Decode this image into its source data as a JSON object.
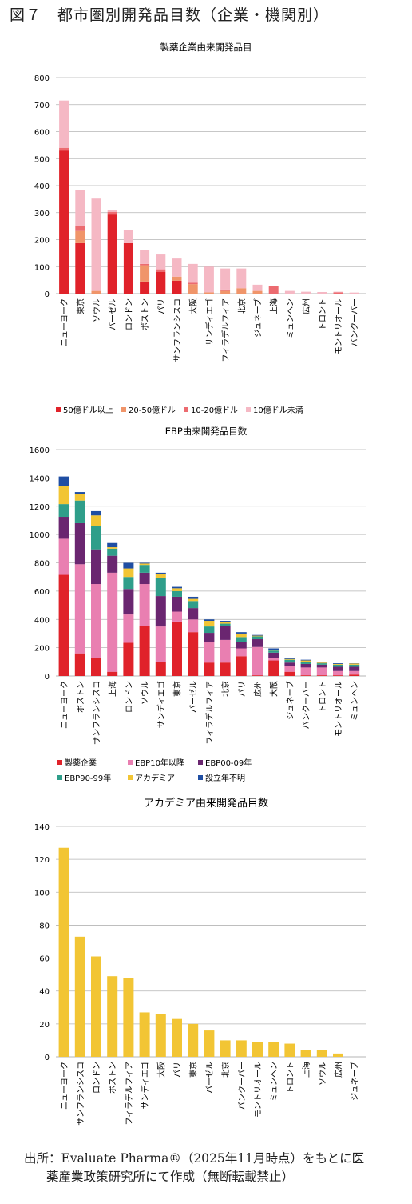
{
  "figure_title": "図７　都市圏別開発品目数（企業・機関別）",
  "source_line1": "出所：Evaluate Pharma®（2025年11月時点）をもとに医",
  "source_line2": "薬産業政策研究所にて作成（無断転載禁止）",
  "chart_data": [
    {
      "type": "bar",
      "stacked": true,
      "title": "製薬企業由来開発品目",
      "ylim": [
        0,
        800
      ],
      "yticks": [
        0,
        100,
        200,
        300,
        400,
        500,
        600,
        700,
        800
      ],
      "grid": true,
      "legend_position": "bottom",
      "categories": [
        "ニューヨーク",
        "東京",
        "ソウル",
        "バーゼル",
        "ロンドン",
        "ボストン",
        "パリ",
        "サンフランシスコ",
        "大阪",
        "サンディエゴ",
        "フィラデルフィア",
        "北京",
        "ジュネーブ",
        "上海",
        "ミュンヘン",
        "広州",
        "トロント",
        "モントリオール",
        "バンクーバー"
      ],
      "series": [
        {
          "name": "50億ドル以上",
          "color": "#e0222a",
          "values": [
            530,
            187,
            0,
            293,
            187,
            45,
            80,
            48,
            0,
            0,
            0,
            0,
            0,
            0,
            0,
            0,
            0,
            0,
            0
          ]
        },
        {
          "name": "20-50億ドル",
          "color": "#f0956a",
          "values": [
            0,
            45,
            10,
            0,
            0,
            60,
            0,
            15,
            35,
            5,
            10,
            20,
            10,
            0,
            0,
            0,
            0,
            0,
            0
          ]
        },
        {
          "name": "10-20億ドル",
          "color": "#ec6b70",
          "values": [
            10,
            18,
            0,
            10,
            0,
            5,
            10,
            0,
            5,
            0,
            5,
            0,
            0,
            28,
            0,
            0,
            0,
            5,
            0
          ]
        },
        {
          "name": "10億ドル未満",
          "color": "#f5b8c4",
          "values": [
            175,
            133,
            342,
            8,
            50,
            50,
            55,
            67,
            70,
            95,
            78,
            73,
            23,
            0,
            10,
            7,
            6,
            2,
            4
          ]
        }
      ]
    },
    {
      "type": "bar",
      "stacked": true,
      "title": "EBP由来開発品目数",
      "ylim": [
        0,
        1600
      ],
      "yticks": [
        0,
        200,
        400,
        600,
        800,
        1000,
        1200,
        1400,
        1600
      ],
      "grid": true,
      "legend_position": "bottom",
      "categories": [
        "ニューヨーク",
        "ボストン",
        "サンフランシスコ",
        "上海",
        "ロンドン",
        "ソウル",
        "サンディエゴ",
        "東京",
        "バーゼル",
        "フィラデルフィア",
        "北京",
        "パリ",
        "広州",
        "大阪",
        "ジュネーブ",
        "バンクーバー",
        "トロント",
        "モントリオール",
        "ミュンヘン"
      ],
      "series": [
        {
          "name": "製薬企業",
          "color": "#e0222a",
          "values": [
            715,
            160,
            130,
            30,
            235,
            355,
            100,
            385,
            310,
            95,
            95,
            140,
            5,
            110,
            30,
            5,
            5,
            5,
            10
          ]
        },
        {
          "name": "EBP10年以降",
          "color": "#e97fb1",
          "values": [
            255,
            630,
            520,
            700,
            200,
            295,
            250,
            70,
            90,
            145,
            160,
            55,
            200,
            15,
            40,
            55,
            55,
            30,
            25
          ]
        },
        {
          "name": "EBP00-09年",
          "color": "#6a2670",
          "values": [
            155,
            290,
            245,
            120,
            180,
            80,
            215,
            105,
            80,
            65,
            100,
            45,
            55,
            40,
            25,
            25,
            20,
            30,
            30
          ]
        },
        {
          "name": "EBP90-99年",
          "color": "#2f9e8a",
          "values": [
            90,
            160,
            165,
            50,
            85,
            55,
            130,
            40,
            50,
            45,
            15,
            35,
            20,
            15,
            20,
            15,
            10,
            15,
            15
          ]
        },
        {
          "name": "アカデミア",
          "color": "#f2c534",
          "values": [
            125,
            45,
            75,
            10,
            60,
            10,
            25,
            20,
            15,
            40,
            10,
            25,
            5,
            5,
            5,
            10,
            5,
            5,
            8
          ]
        },
        {
          "name": "設立年不明",
          "color": "#1f4ea3",
          "values": [
            70,
            15,
            30,
            30,
            40,
            5,
            10,
            10,
            15,
            10,
            10,
            10,
            5,
            10,
            5,
            5,
            5,
            5,
            2
          ]
        }
      ]
    },
    {
      "type": "bar",
      "stacked": false,
      "title": "アカデミア由来開発品目数",
      "ylim": [
        0,
        140
      ],
      "yticks": [
        0,
        20,
        40,
        60,
        80,
        100,
        120,
        140
      ],
      "grid": true,
      "categories": [
        "ニューヨーク",
        "サンフランシスコ",
        "ロンドン",
        "ボストン",
        "フィラデルフィア",
        "サンディエゴ",
        "大阪",
        "パリ",
        "東京",
        "バーゼル",
        "北京",
        "バンクーバー",
        "モントリオール",
        "ミュンヘン",
        "トロント",
        "上海",
        "ソウル",
        "広州",
        "ジュネーブ"
      ],
      "series": [
        {
          "name": "",
          "color": "#f2c534",
          "values": [
            127,
            73,
            61,
            49,
            48,
            27,
            26,
            23,
            20,
            16,
            10,
            10,
            9,
            9,
            8,
            4,
            4,
            2,
            0
          ]
        }
      ]
    }
  ]
}
